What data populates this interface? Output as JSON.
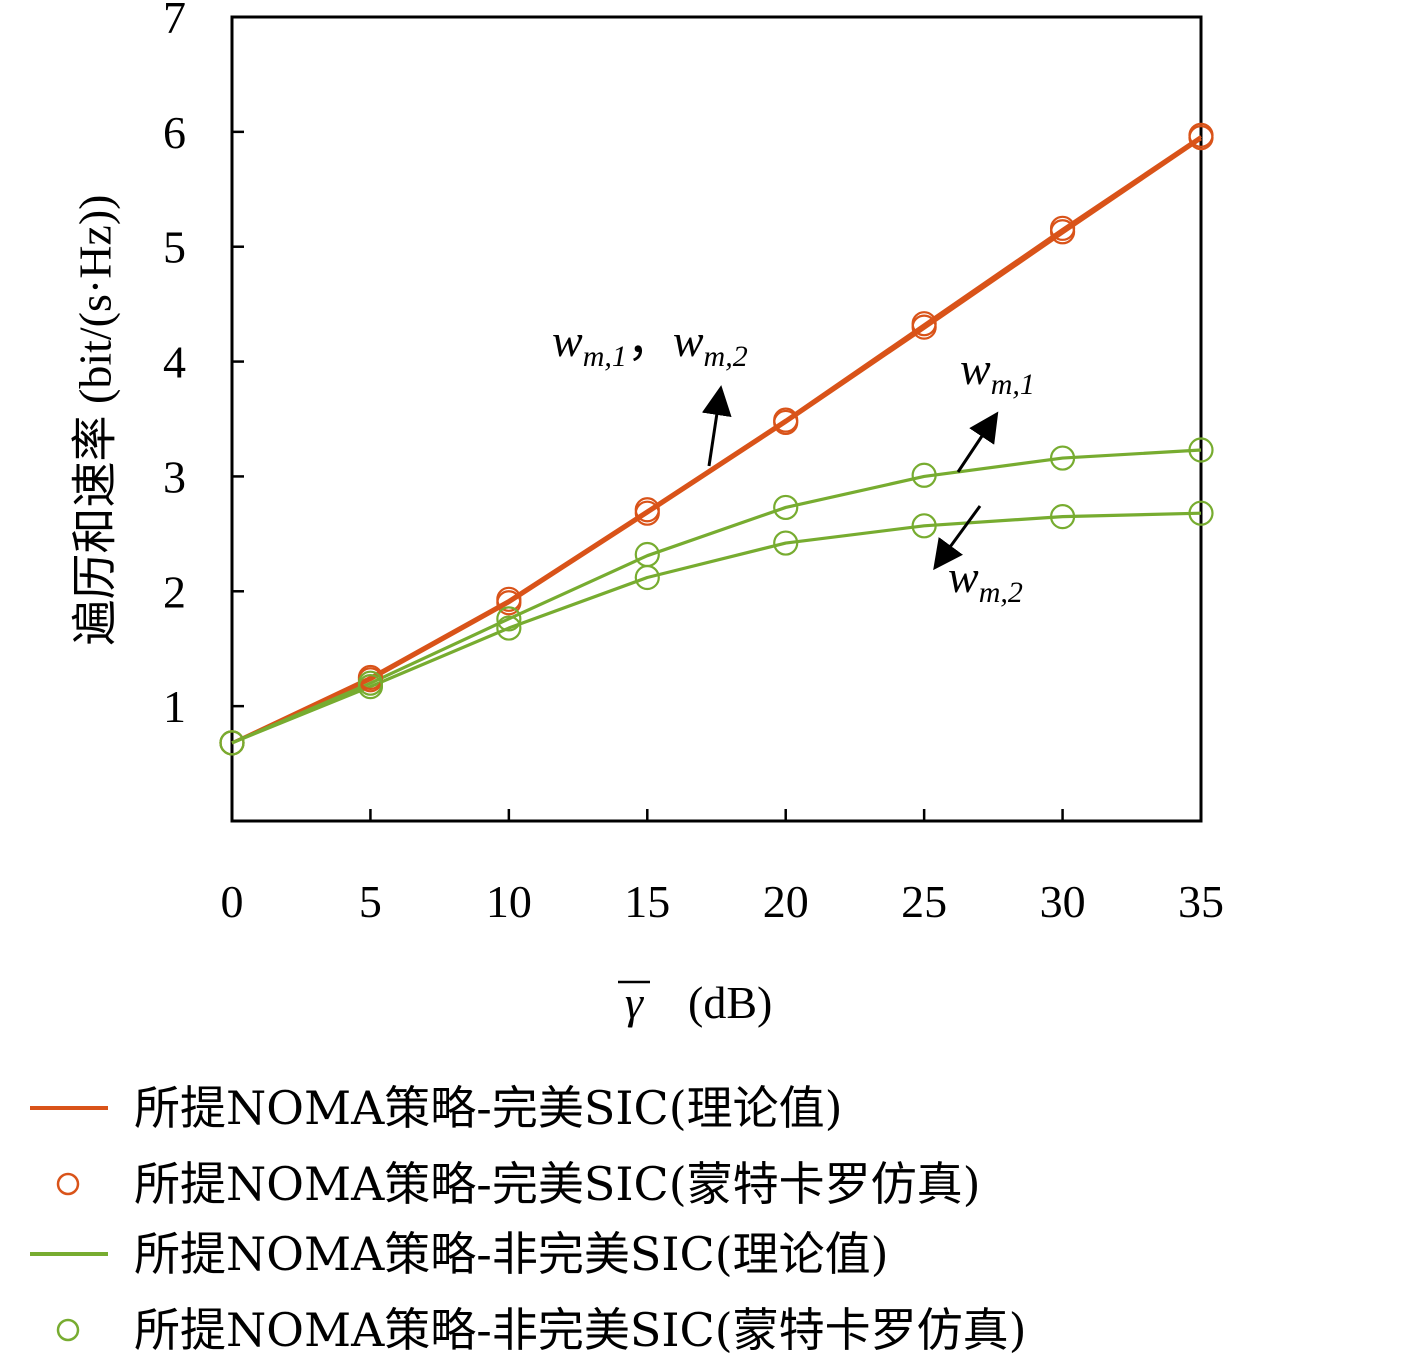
{
  "chart_data": {
    "type": "line",
    "xlabel_symbol": "γ",
    "xlabel_unit": "(dB)",
    "ylabel": "遍历和速率 (bit/(s·Hz))",
    "x": [
      0,
      5,
      10,
      15,
      20,
      25,
      30,
      35
    ],
    "xlim": [
      0,
      35
    ],
    "ylim": [
      0,
      7
    ],
    "xticks": [
      0,
      5,
      10,
      15,
      20,
      25,
      30,
      35
    ],
    "yticks": [
      1,
      2,
      3,
      4,
      5,
      6,
      7
    ],
    "grid": false,
    "legend_position": "bottom",
    "series": [
      {
        "key": "perfect_w1_theory",
        "values": [
          0.68,
          1.25,
          1.92,
          2.7,
          3.49,
          4.32,
          5.15,
          5.96
        ],
        "color": "#d95319",
        "marker": "none"
      },
      {
        "key": "perfect_w2_theory",
        "values": [
          0.68,
          1.23,
          1.9,
          2.68,
          3.47,
          4.29,
          5.12,
          5.94
        ],
        "color": "#d95319",
        "marker": "none"
      },
      {
        "key": "perfect_w1_sim",
        "values": [
          0.68,
          1.25,
          1.93,
          2.71,
          3.49,
          4.33,
          5.16,
          5.97
        ],
        "color": "#d95319",
        "marker": "circle"
      },
      {
        "key": "perfect_w2_sim",
        "values": [
          0.68,
          1.23,
          1.9,
          2.68,
          3.47,
          4.3,
          5.13,
          5.95
        ],
        "color": "#d95319",
        "marker": "circle"
      },
      {
        "key": "imperfect_w1_theory",
        "values": [
          0.68,
          1.2,
          1.76,
          2.31,
          2.73,
          3.0,
          3.16,
          3.23
        ],
        "color": "#77ac30",
        "marker": "none"
      },
      {
        "key": "imperfect_w2_theory",
        "values": [
          0.68,
          1.17,
          1.68,
          2.12,
          2.42,
          2.57,
          2.65,
          2.68
        ],
        "color": "#77ac30",
        "marker": "none"
      },
      {
        "key": "imperfect_w1_sim",
        "values": [
          0.68,
          1.2,
          1.76,
          2.32,
          2.73,
          3.01,
          3.16,
          3.23
        ],
        "color": "#77ac30",
        "marker": "circle"
      },
      {
        "key": "imperfect_w2_sim",
        "values": [
          0.68,
          1.17,
          1.68,
          2.12,
          2.42,
          2.57,
          2.65,
          2.68
        ],
        "color": "#77ac30",
        "marker": "circle"
      }
    ],
    "annotations": {
      "perfect": {
        "w1": "w",
        "w1_sub": "m,1",
        "sep": "，",
        "w2": "w",
        "w2_sub": "m,2"
      },
      "imperfect_up": {
        "w": "w",
        "sub": "m,1"
      },
      "imperfect_down": {
        "w": "w",
        "sub": "m,2"
      }
    },
    "legend": [
      {
        "label": "所提NOMA策略-完美SIC(理论值)",
        "color": "#d95319",
        "style": "line"
      },
      {
        "label": "所提NOMA策略-完美SIC(蒙特卡罗仿真)",
        "color": "#d95319",
        "style": "circle"
      },
      {
        "label": "所提NOMA策略-非完美SIC(理论值)",
        "color": "#77ac30",
        "style": "line"
      },
      {
        "label": "所提NOMA策略-非完美SIC(蒙特卡罗仿真)",
        "color": "#77ac30",
        "style": "circle"
      }
    ]
  }
}
